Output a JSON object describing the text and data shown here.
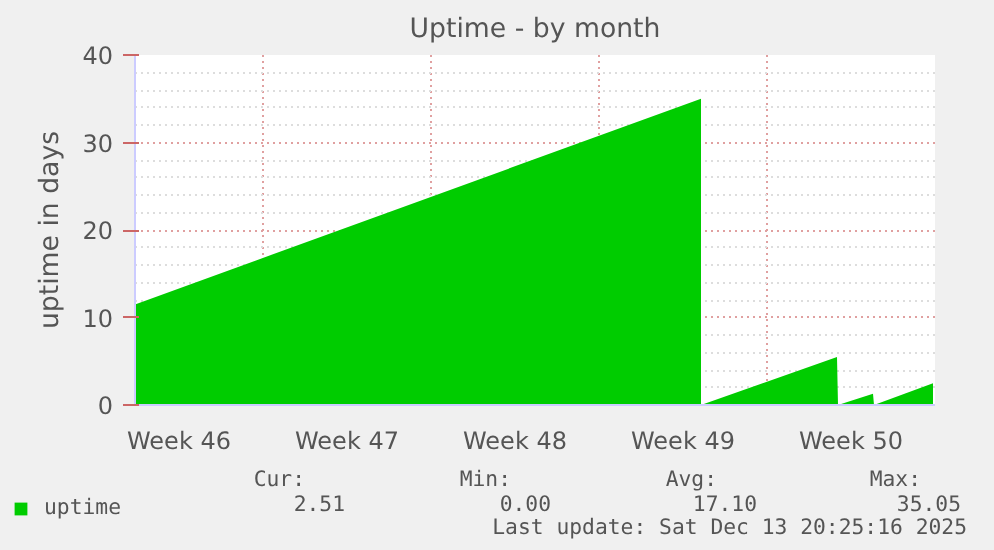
{
  "chart_data": {
    "type": "area",
    "title": "Uptime - by month",
    "ylabel": "uptime in days",
    "x": [
      "2025-11-10T14:00",
      "2025-12-04T04:00",
      "2025-12-04T04:00",
      "2025-12-09T20:00",
      "2025-12-09T21:00",
      "2025-12-11T08:00",
      "2025-12-11T09:00",
      "2025-12-13T20:00"
    ],
    "series": [
      {
        "name": "uptime",
        "color": "#00cc00",
        "values": [
          11.5,
          35,
          0,
          5.5,
          0,
          1.3,
          0,
          2.5
        ]
      }
    ],
    "xlim": [
      "2025-11-10T14:00",
      "2025-12-13T22:00"
    ],
    "xticks": [
      {
        "value": "2025-11-12T10:00",
        "label": "Week 46"
      },
      {
        "value": "2025-11-19T10:00",
        "label": "Week 47"
      },
      {
        "value": "2025-11-26T10:00",
        "label": "Week 48"
      },
      {
        "value": "2025-12-03T10:00",
        "label": "Week 49"
      },
      {
        "value": "2025-12-10T10:00",
        "label": "Week 50"
      },
      {
        "value": "2025-11-15T22:00",
        "label": null
      },
      {
        "value": "2025-11-22T22:00",
        "label": null
      },
      {
        "value": "2025-11-29T22:00",
        "label": null
      },
      {
        "value": "2025-12-06T22:00",
        "label": null
      }
    ],
    "ylim": [
      0,
      40
    ],
    "yticks": [
      0,
      10,
      20,
      30,
      40
    ],
    "grid": true,
    "legend": "bottom left",
    "annotations": [
      "Cur:",
      "Min:",
      "Avg:",
      "Max:",
      "2.51",
      "0.00",
      "17.10",
      "35.05",
      "Last update: Sat Dec 13 20:25:16 2025"
    ]
  }
}
